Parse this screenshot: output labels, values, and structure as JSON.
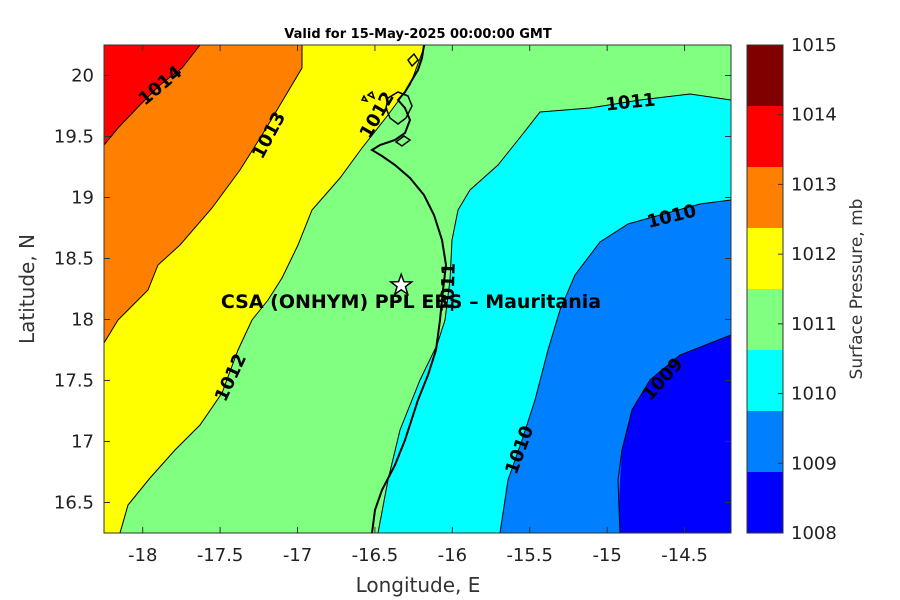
{
  "chart_data": {
    "type": "contour-map",
    "title": "Valid for 15-May-2025 00:00:00 GMT",
    "xlabel": "Longitude, E",
    "ylabel": "Latitude, N",
    "xlim": [
      -18.25,
      -14.2
    ],
    "ylim": [
      16.25,
      20.25
    ],
    "x_ticks": [
      "-18",
      "-17.5",
      "-17",
      "-16.5",
      "-16",
      "-15.5",
      "-15",
      "-14.5"
    ],
    "y_ticks": [
      "20",
      "19.5",
      "19",
      "18.5",
      "18",
      "17.5",
      "17",
      "16.5"
    ],
    "colorbar": {
      "label": "Surface Pressure, mb",
      "ticks": [
        "1015",
        "1014",
        "1013",
        "1012",
        "1011",
        "1010",
        "1009",
        "1008"
      ],
      "levels": [
        {
          "from": 1014,
          "to": 1015,
          "color": "#800000"
        },
        {
          "from": 1013,
          "to": 1014,
          "color": "#ff0000"
        },
        {
          "from": 1012,
          "to": 1013,
          "color": "#ff8000"
        },
        {
          "from": 1011,
          "to": 1012,
          "color": "#ffff00"
        },
        {
          "from": 1010,
          "to": 1011,
          "color": "#80ff80"
        },
        {
          "from": 1009,
          "to": 1010,
          "color": "#00ffff"
        },
        {
          "from": 1008,
          "to": 1009,
          "color": "#0080ff"
        },
        {
          "from": 1007,
          "to": 1008,
          "color": "#0000ff"
        }
      ]
    },
    "contour_labels": [
      "1014",
      "1013",
      "1012",
      "1012",
      "1011",
      "1011",
      "1010",
      "1010",
      "1009"
    ],
    "station": {
      "label": "CSA (ONHYM) PPL EBS  – Mauritania",
      "lon": -16.33,
      "lat": 18.28
    }
  }
}
